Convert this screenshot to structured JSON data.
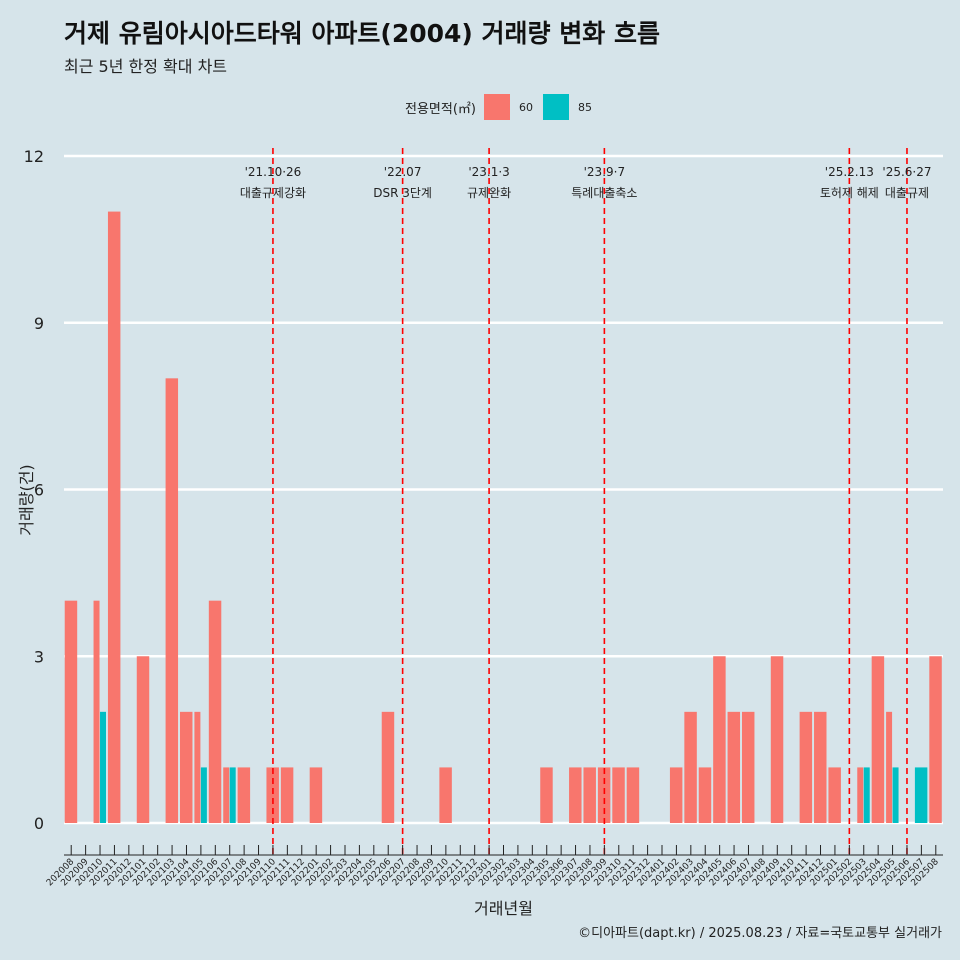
{
  "title": "거제 유림아시아드타워 아파트(2004) 거래량 변화 흐름",
  "subtitle": "최근 5년 한정 확대 차트",
  "caption": "©디아파트(dapt.kr) / 2025.08.23 / 자료=국토교통부 실거래가",
  "legend": {
    "title": "전용면적(㎡)",
    "items": [
      {
        "label": "60",
        "color": "#f8766d"
      },
      {
        "label": "85",
        "color": "#00bfc4"
      }
    ]
  },
  "chart_data": {
    "type": "bar",
    "xlabel": "거래년월",
    "ylabel": "거래량(건)",
    "ylim": [
      0,
      12
    ],
    "yticks": [
      0,
      3,
      6,
      9,
      12
    ],
    "categories": [
      "202008",
      "202009",
      "202010",
      "202011",
      "202012",
      "202101",
      "202102",
      "202103",
      "202104",
      "202105",
      "202106",
      "202107",
      "202108",
      "202109",
      "202110",
      "202111",
      "202112",
      "202201",
      "202202",
      "202203",
      "202204",
      "202205",
      "202206",
      "202207",
      "202208",
      "202209",
      "202210",
      "202211",
      "202212",
      "202301",
      "202302",
      "202303",
      "202304",
      "202305",
      "202306",
      "202307",
      "202308",
      "202309",
      "202310",
      "202311",
      "202312",
      "202401",
      "202402",
      "202403",
      "202404",
      "202405",
      "202406",
      "202407",
      "202408",
      "202409",
      "202410",
      "202411",
      "202412",
      "202501",
      "202502",
      "202503",
      "202504",
      "202505",
      "202506",
      "202507",
      "202508"
    ],
    "series": [
      {
        "name": "60",
        "color": "#f8766d",
        "values": [
          4,
          0,
          4,
          11,
          0,
          3,
          0,
          8,
          2,
          2,
          4,
          1,
          1,
          0,
          1,
          1,
          0,
          1,
          0,
          0,
          0,
          0,
          2,
          0,
          0,
          0,
          1,
          0,
          0,
          0,
          0,
          0,
          0,
          1,
          0,
          1,
          1,
          1,
          1,
          1,
          0,
          0,
          1,
          2,
          1,
          3,
          2,
          2,
          0,
          3,
          0,
          2,
          2,
          1,
          0,
          1,
          3,
          2,
          0,
          0,
          3
        ]
      },
      {
        "name": "85",
        "color": "#00bfc4",
        "values": [
          0,
          0,
          2,
          0,
          0,
          0,
          0,
          0,
          0,
          1,
          0,
          1,
          0,
          0,
          0,
          0,
          0,
          0,
          0,
          0,
          0,
          0,
          0,
          0,
          0,
          0,
          0,
          0,
          0,
          0,
          0,
          0,
          0,
          0,
          0,
          0,
          0,
          0,
          0,
          0,
          0,
          0,
          0,
          0,
          0,
          0,
          0,
          0,
          0,
          0,
          0,
          0,
          0,
          0,
          0,
          1,
          0,
          1,
          0,
          1,
          0
        ]
      }
    ],
    "events": [
      {
        "x": "202110",
        "date": "'21.10·26",
        "label": "대출규제강화"
      },
      {
        "x": "202207",
        "date": "'22.07",
        "label": "DSR 3단계"
      },
      {
        "x": "202301",
        "date": "'23.1·3",
        "label": "규제완화"
      },
      {
        "x": "202309",
        "date": "'23.9·7",
        "label": "특례대출축소"
      },
      {
        "x": "202502",
        "date": "'25.2.13",
        "label": "토허제 해제"
      },
      {
        "x": "202506",
        "date": "'25.6·27",
        "label": "대출규제"
      }
    ],
    "event_line_color": "#ff0000",
    "grid": true
  }
}
